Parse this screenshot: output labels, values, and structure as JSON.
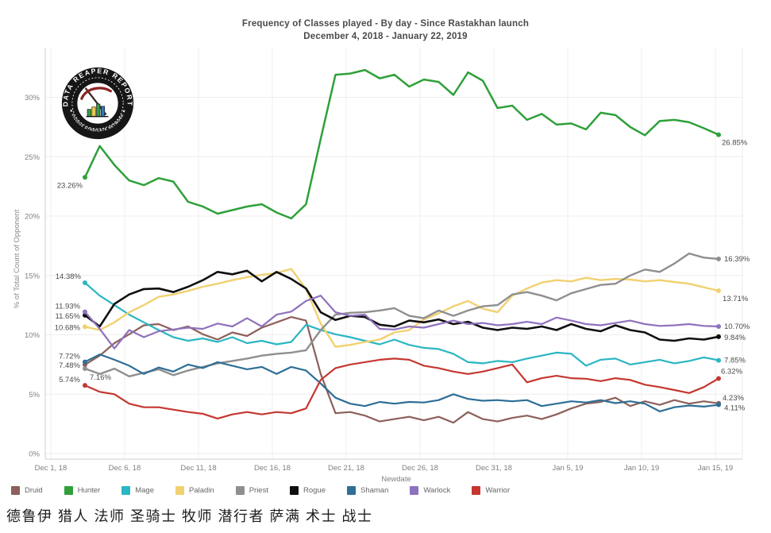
{
  "title": {
    "line1": "Frequency of Classes played - By day - Since Rastakhan launch",
    "line2": "December 4, 2018 - January 22, 2019"
  },
  "logo": {
    "arc_top": "DATA REAPER REPORT",
    "arc_bottom": "★ VICIOUS SYNDICATE NETWORK ★"
  },
  "axes": {
    "y_title": "% of Total Count of Opponent",
    "x_title": "Newdate",
    "y_tick_labels": [
      "0%",
      "5%",
      "10%",
      "15%",
      "20%",
      "25%",
      "30%"
    ],
    "y_tick_values": [
      0,
      5,
      10,
      15,
      20,
      25,
      30
    ],
    "x_tick_labels": [
      "Dec 1, 18",
      "Dec 6, 18",
      "Dec 11, 18",
      "Dec 16, 18",
      "Dec 21, 18",
      "Dec 26, 18",
      "Dec 31, 18",
      "Jan 5, 19",
      "Jan 10, 19",
      "Jan 15, 19"
    ]
  },
  "legend": [
    {
      "label": "Druid",
      "color": "#8d605a"
    },
    {
      "label": "Hunter",
      "color": "#2fa03a"
    },
    {
      "label": "Mage",
      "color": "#2ab6c3"
    },
    {
      "label": "Paladin",
      "color": "#f1d170"
    },
    {
      "label": "Priest",
      "color": "#8f8f8f"
    },
    {
      "label": "Rogue",
      "color": "#0f0f0f"
    },
    {
      "label": "Shaman",
      "color": "#2e6e97"
    },
    {
      "label": "Warlock",
      "color": "#8f72bd"
    },
    {
      "label": "Warrior",
      "color": "#c53730"
    }
  ],
  "translation_row": "德鲁伊 猎人  法师 圣骑士 牧师 潜行者 萨满  术士  战士",
  "chart_data": {
    "type": "line",
    "title": "Frequency of Classes played - By day - Since Rastakhan launch",
    "subtitle": "December 4, 2018 - January 22, 2019",
    "xlabel": "Newdate",
    "ylabel": "% of Total Count of Opponent",
    "ylim": [
      0,
      34
    ],
    "grid": true,
    "legend_position": "bottom",
    "x_tick_labels": [
      "Dec 1, 18",
      "Dec 6, 18",
      "Dec 11, 18",
      "Dec 16, 18",
      "Dec 21, 18",
      "Dec 26, 18",
      "Dec 31, 18",
      "Jan 5, 19",
      "Jan 10, 19",
      "Jan 15, 19"
    ],
    "series": [
      {
        "name": "Druid",
        "color": "#8d605a",
        "width": 2.2,
        "start_label": {
          "text": "7.48%",
          "dx": -6,
          "dy": 4,
          "anchor": "end"
        },
        "end_label": {
          "text": "4.23%",
          "dx": 5,
          "dy": -4,
          "anchor": "start"
        },
        "values": [
          7.48,
          8.25,
          9.3,
          10.05,
          10.8,
          10.9,
          10.4,
          10.7,
          10.05,
          9.6,
          10.2,
          9.9,
          10.6,
          11.05,
          11.5,
          11.2,
          6.7,
          3.4,
          3.5,
          3.2,
          2.7,
          2.9,
          3.1,
          2.8,
          3.1,
          2.6,
          3.5,
          2.9,
          2.7,
          3.0,
          3.2,
          2.9,
          3.3,
          3.8,
          4.2,
          4.35,
          4.7,
          4.0,
          4.4,
          4.1,
          4.5,
          4.2,
          4.4,
          4.23
        ]
      },
      {
        "name": "Hunter",
        "color": "#2fa03a",
        "width": 2.5,
        "start_label": {
          "text": "23.26%",
          "dx": -3,
          "dy": 13,
          "anchor": "end"
        },
        "end_label": {
          "text": "26.85%",
          "dx": 4,
          "dy": 13,
          "anchor": "start"
        },
        "values": [
          23.26,
          25.9,
          24.3,
          23.0,
          22.6,
          23.2,
          22.9,
          21.2,
          20.8,
          20.2,
          20.5,
          20.8,
          21.0,
          20.3,
          19.8,
          21.0,
          26.5,
          31.9,
          32.0,
          32.3,
          31.6,
          31.9,
          30.9,
          31.5,
          31.3,
          30.2,
          32.1,
          31.4,
          29.1,
          29.3,
          28.1,
          28.6,
          27.7,
          27.8,
          27.3,
          28.7,
          28.5,
          27.5,
          26.8,
          28.0,
          28.1,
          27.9,
          27.4,
          26.85
        ]
      },
      {
        "name": "Mage",
        "color": "#2ab6c3",
        "width": 2.2,
        "start_label": {
          "text": "14.38%",
          "dx": -5,
          "dy": -5,
          "anchor": "end"
        },
        "end_label": {
          "text": "7.85%",
          "dx": 7,
          "dy": 3,
          "anchor": "start"
        },
        "values": [
          14.38,
          13.3,
          12.5,
          11.7,
          11.05,
          10.4,
          9.8,
          9.5,
          9.7,
          9.4,
          9.8,
          9.3,
          9.5,
          9.2,
          9.4,
          10.85,
          10.4,
          10.05,
          9.8,
          9.5,
          9.2,
          9.6,
          9.15,
          8.9,
          8.8,
          8.4,
          7.7,
          7.6,
          7.8,
          7.7,
          8.0,
          8.25,
          8.5,
          8.4,
          7.4,
          7.9,
          8.0,
          7.5,
          7.7,
          7.9,
          7.6,
          7.8,
          8.1,
          7.85
        ]
      },
      {
        "name": "Paladin",
        "color": "#f1d170",
        "width": 2.4,
        "start_label": {
          "text": "10.68%",
          "dx": -6,
          "dy": 4,
          "anchor": "end"
        },
        "end_label": {
          "text": "13.71%",
          "dx": 5,
          "dy": 13,
          "anchor": "start"
        },
        "values": [
          10.68,
          10.4,
          11.05,
          11.9,
          12.5,
          13.2,
          13.4,
          13.7,
          14.05,
          14.3,
          14.6,
          14.85,
          15.05,
          15.2,
          15.55,
          13.85,
          10.95,
          9.0,
          9.15,
          9.4,
          9.6,
          10.2,
          10.4,
          11.3,
          11.8,
          12.4,
          12.85,
          12.2,
          11.9,
          13.3,
          13.9,
          14.4,
          14.6,
          14.5,
          14.8,
          14.6,
          14.7,
          14.65,
          14.5,
          14.6,
          14.45,
          14.3,
          14.0,
          13.71
        ]
      },
      {
        "name": "Priest",
        "color": "#8f8f8f",
        "width": 2.4,
        "start_label": {
          "text": "7.16%",
          "dx": 6,
          "dy": 14,
          "anchor": "start"
        },
        "end_label": {
          "text": "16.39%",
          "dx": 7,
          "dy": 3,
          "anchor": "start"
        },
        "values": [
          7.16,
          6.7,
          7.15,
          6.5,
          6.8,
          7.1,
          6.6,
          7.0,
          7.3,
          7.6,
          7.8,
          8.0,
          8.25,
          8.4,
          8.5,
          8.7,
          10.4,
          11.7,
          11.85,
          11.9,
          12.05,
          12.25,
          11.6,
          11.4,
          12.05,
          11.6,
          12.05,
          12.4,
          12.5,
          13.4,
          13.6,
          13.3,
          12.9,
          13.5,
          13.85,
          14.2,
          14.3,
          15.0,
          15.5,
          15.3,
          16.0,
          16.85,
          16.5,
          16.39
        ]
      },
      {
        "name": "Rogue",
        "color": "#0f0f0f",
        "width": 2.6,
        "start_label": {
          "text": "11.65%",
          "dx": -6,
          "dy": 4,
          "anchor": "end"
        },
        "end_label": {
          "text": "9.84%",
          "dx": 7,
          "dy": 4,
          "anchor": "start"
        },
        "values": [
          11.65,
          10.7,
          12.6,
          13.4,
          13.85,
          13.9,
          13.6,
          14.05,
          14.6,
          15.3,
          15.1,
          15.4,
          14.5,
          15.3,
          14.7,
          13.9,
          11.9,
          11.25,
          11.6,
          11.5,
          10.85,
          10.7,
          11.2,
          11.05,
          11.3,
          10.9,
          11.1,
          10.6,
          10.4,
          10.6,
          10.5,
          10.7,
          10.4,
          10.9,
          10.5,
          10.3,
          10.8,
          10.4,
          10.2,
          9.6,
          9.5,
          9.7,
          9.6,
          9.84
        ]
      },
      {
        "name": "Shaman",
        "color": "#2e6e97",
        "width": 2.2,
        "start_label": {
          "text": "7.72%",
          "dx": -6,
          "dy": -4,
          "anchor": "end"
        },
        "end_label": {
          "text": "4.11%",
          "dx": 7,
          "dy": 7,
          "anchor": "start"
        },
        "values": [
          7.72,
          8.35,
          7.9,
          7.4,
          6.7,
          7.25,
          6.9,
          7.5,
          7.2,
          7.7,
          7.4,
          7.1,
          7.3,
          6.7,
          7.3,
          7.0,
          5.9,
          4.7,
          4.2,
          4.0,
          4.35,
          4.2,
          4.35,
          4.3,
          4.5,
          5.0,
          4.6,
          4.45,
          4.5,
          4.4,
          4.5,
          4.0,
          4.2,
          4.4,
          4.3,
          4.5,
          4.25,
          4.4,
          4.2,
          3.55,
          3.9,
          4.05,
          3.95,
          4.11
        ]
      },
      {
        "name": "Warlock",
        "color": "#8f72bd",
        "width": 2.2,
        "start_label": {
          "text": "11.93%",
          "dx": -6,
          "dy": -4,
          "anchor": "end"
        },
        "end_label": {
          "text": "10.70%",
          "dx": 7,
          "dy": 3,
          "anchor": "start"
        },
        "values": [
          11.93,
          10.5,
          8.85,
          10.4,
          9.8,
          10.3,
          10.45,
          10.6,
          10.5,
          10.95,
          10.7,
          11.4,
          10.7,
          11.7,
          11.95,
          12.85,
          13.3,
          11.9,
          11.6,
          11.7,
          10.5,
          10.45,
          10.7,
          10.6,
          10.9,
          11.2,
          10.9,
          11.0,
          10.8,
          10.9,
          11.1,
          10.9,
          11.45,
          11.2,
          10.9,
          10.8,
          11.0,
          11.2,
          10.9,
          10.75,
          10.8,
          10.9,
          10.75,
          10.7
        ]
      },
      {
        "name": "Warrior",
        "color": "#c53730",
        "width": 2.2,
        "start_label": {
          "text": "5.74%",
          "dx": -6,
          "dy": -4,
          "anchor": "end"
        },
        "end_label": {
          "text": "6.32%",
          "dx": 3,
          "dy": -6,
          "anchor": "start"
        },
        "values": [
          5.74,
          5.2,
          5.0,
          4.2,
          3.9,
          3.9,
          3.7,
          3.5,
          3.35,
          2.95,
          3.3,
          3.5,
          3.3,
          3.5,
          3.4,
          3.8,
          6.2,
          7.2,
          7.5,
          7.7,
          7.9,
          8.0,
          7.9,
          7.4,
          7.2,
          6.9,
          6.7,
          6.9,
          7.2,
          7.5,
          6.0,
          6.35,
          6.55,
          6.35,
          6.3,
          6.1,
          6.35,
          6.2,
          5.8,
          5.6,
          5.35,
          5.1,
          5.6,
          6.32
        ]
      }
    ]
  }
}
